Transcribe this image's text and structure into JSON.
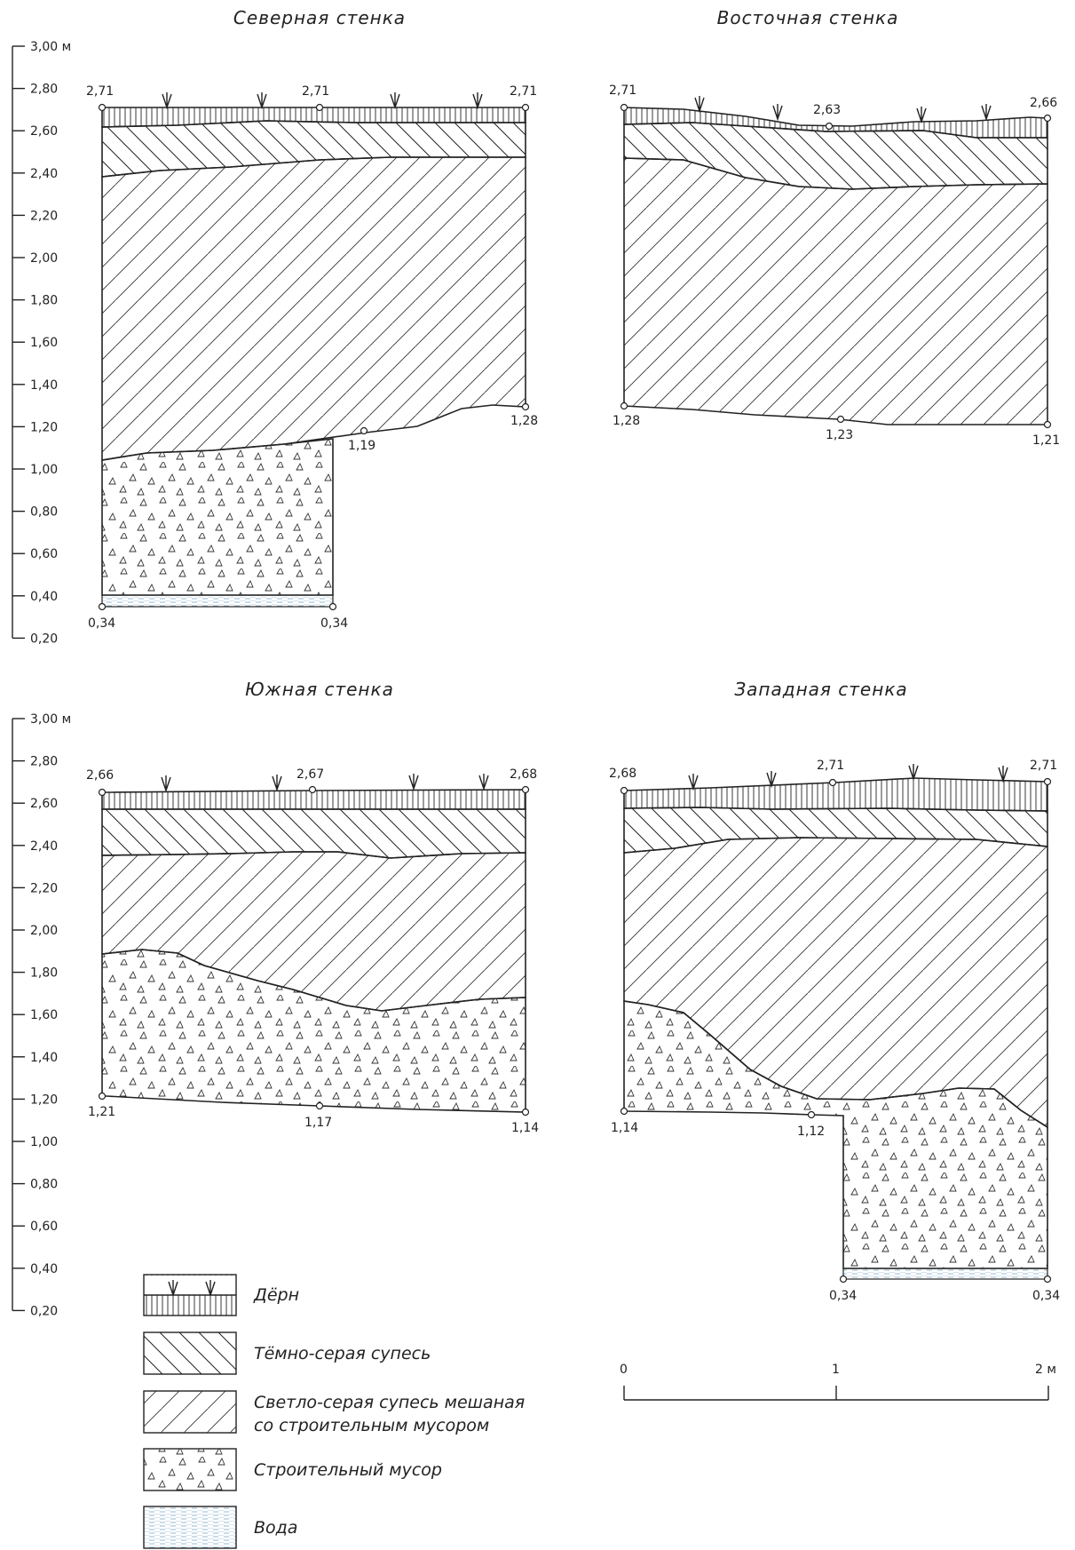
{
  "scale_bars": [
    {
      "unit": "м",
      "labels": [
        "3,00 м",
        "2,80",
        "2,60",
        "2,40",
        "2,20",
        "2,00",
        "1,80",
        "1,60",
        "1,40",
        "1,20",
        "1,00",
        "0,80",
        "0,60",
        "0,40",
        "0,20"
      ]
    },
    {
      "unit": "м",
      "labels": [
        "3,00 м",
        "2,80",
        "2,60",
        "2,40",
        "2,20",
        "2,00",
        "1,80",
        "1,60",
        "1,40",
        "1,20",
        "1,00",
        "0,80",
        "0,60",
        "0,40",
        "0,20"
      ]
    }
  ],
  "profiles": [
    {
      "id": "north",
      "title": "Северная стенка",
      "points": [
        "2,71",
        "2,71",
        "2,71",
        "1,28",
        "1,19",
        "0,34",
        "0,34"
      ]
    },
    {
      "id": "east",
      "title": "Восточная стенка",
      "points": [
        "2,71",
        "2,63",
        "2,66",
        "1,28",
        "1,23",
        "1,21"
      ]
    },
    {
      "id": "south",
      "title": "Южная стенка",
      "points": [
        "2,66",
        "2,67",
        "2,68",
        "1,21",
        "1,17",
        "1,14"
      ]
    },
    {
      "id": "west",
      "title": "Западная стенка",
      "points": [
        "2,68",
        "2,71",
        "2,71",
        "1,14",
        "1,12",
        "0,34",
        "0,34"
      ]
    }
  ],
  "legend": {
    "items": [
      {
        "id": "turf",
        "lines": [
          "Дёрн"
        ]
      },
      {
        "id": "dark",
        "lines": [
          "Тёмно-серая супесь"
        ]
      },
      {
        "id": "light",
        "lines": [
          "Светло-серая супесь мешаная",
          "со строительным мусором"
        ]
      },
      {
        "id": "debris",
        "lines": [
          "Строительный мусор"
        ]
      },
      {
        "id": "water",
        "lines": [
          "Вода"
        ]
      }
    ]
  },
  "scale": {
    "labels": [
      "0",
      "1",
      "2 м"
    ]
  }
}
